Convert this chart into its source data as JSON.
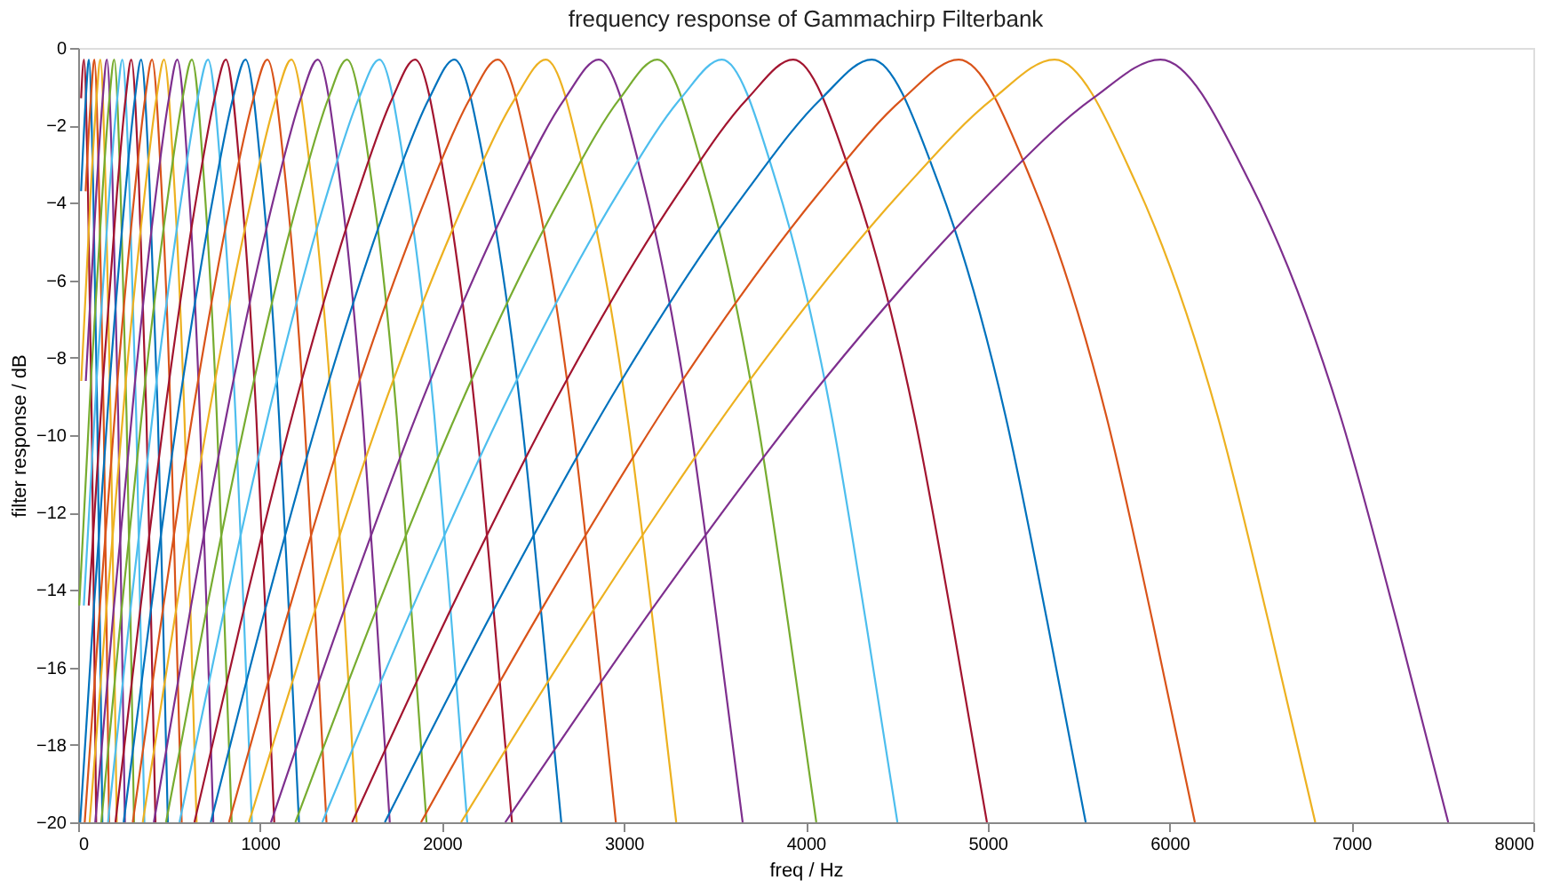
{
  "chart_data": {
    "type": "line",
    "title": "frequency response of Gammachirp Filterbank",
    "xlabel": "freq / Hz",
    "ylabel": "filter response  / dB",
    "xlim": [
      0,
      8000
    ],
    "ylim": [
      -20,
      0
    ],
    "xticks": [
      0,
      1000,
      2000,
      3000,
      4000,
      5000,
      6000,
      7000,
      8000
    ],
    "yticks": [
      -20,
      -18,
      -16,
      -14,
      -12,
      -10,
      -8,
      -6,
      -4,
      -2,
      0
    ],
    "grid": false,
    "legend": false,
    "series": [
      {
        "color": "#a2142f",
        "x": [
          16,
          32,
          53,
          74,
          87,
          99
        ],
        "values": [
          -1.3,
          -0.3,
          -3.5,
          -9.5,
          -14.8,
          -20
        ]
      },
      {
        "color": "#0072bd",
        "x": [
          16,
          42,
          59,
          82,
          105,
          119,
          133
        ],
        "values": [
          -3.7,
          -1.3,
          -0.3,
          -3.5,
          -9.5,
          -14.8,
          -20
        ]
      },
      {
        "color": "#d95319",
        "x": [
          41,
          70,
          89,
          114,
          140,
          156,
          170
        ],
        "values": [
          -3.7,
          -1.3,
          -0.3,
          -3.5,
          -9.5,
          -14.8,
          -20
        ]
      },
      {
        "color": "#edb120",
        "x": [
          17,
          69,
          101,
          122,
          150,
          178,
          196,
          212
        ],
        "values": [
          -8.6,
          -3.7,
          -1.3,
          -0.3,
          -3.5,
          -9.5,
          -14.8,
          -20
        ]
      },
      {
        "color": "#7e2f8e",
        "x": [
          42,
          100,
          135,
          158,
          189,
          220,
          239,
          257
        ],
        "values": [
          -8.6,
          -3.7,
          -1.3,
          -0.3,
          -3.5,
          -9.5,
          -14.8,
          -20
        ]
      },
      {
        "color": "#77ac30",
        "x": [
          6,
          70,
          134,
          172,
          198,
          232,
          266,
          288,
          307
        ],
        "values": [
          -14.4,
          -8.6,
          -3.7,
          -1.3,
          -0.3,
          -3.5,
          -9.5,
          -14.8,
          -20
        ]
      },
      {
        "color": "#4dbeee",
        "x": [
          31,
          101,
          172,
          215,
          243,
          281,
          319,
          342,
          364
        ],
        "values": [
          -14.4,
          -8.6,
          -3.7,
          -1.3,
          -0.3,
          -3.5,
          -9.5,
          -14.8,
          -20
        ]
      },
      {
        "color": "#a2142f",
        "x": [
          58,
          136,
          214,
          261,
          292,
          334,
          375,
          401,
          425
        ],
        "values": [
          -14.4,
          -8.6,
          -3.7,
          -1.3,
          -0.3,
          -3.5,
          -9.5,
          -14.8,
          -20
        ]
      },
      {
        "color": "#0072bd",
        "x": [
          11,
          87,
          174,
          260,
          312,
          346,
          392,
          438,
          467,
          493
        ],
        "values": [
          -20,
          -14.4,
          -8.6,
          -3.7,
          -1.3,
          -0.3,
          -3.5,
          -9.5,
          -14.8,
          -20
        ]
      },
      {
        "color": "#d95319",
        "x": [
          36,
          120,
          216,
          311,
          368,
          406,
          457,
          508,
          539,
          569
        ],
        "values": [
          -20,
          -14.4,
          -8.6,
          -3.7,
          -1.3,
          -0.3,
          -3.5,
          -9.5,
          -14.8,
          -20
        ]
      },
      {
        "color": "#edb120",
        "x": [
          63,
          157,
          262,
          367,
          430,
          472,
          528,
          584,
          619,
          651
        ],
        "values": [
          -20,
          -14.4,
          -8.6,
          -3.7,
          -1.3,
          -0.3,
          -3.5,
          -9.5,
          -14.8,
          -20
        ]
      },
      {
        "color": "#7e2f8e",
        "x": [
          94,
          197,
          313,
          429,
          499,
          545,
          607,
          669,
          708,
          743
        ],
        "values": [
          -20,
          -14.4,
          -8.6,
          -3.7,
          -1.3,
          -0.3,
          -3.5,
          -9.5,
          -14.8,
          -20
        ]
      },
      {
        "color": "#77ac30",
        "x": [
          127,
          241,
          369,
          497,
          574,
          625,
          693,
          762,
          804,
          844
        ],
        "values": [
          -20,
          -14.4,
          -8.6,
          -3.7,
          -1.3,
          -0.3,
          -3.5,
          -9.5,
          -14.8,
          -20
        ]
      },
      {
        "color": "#4dbeee",
        "x": [
          164,
          290,
          431,
          573,
          657,
          714,
          789,
          865,
          912,
          955
        ],
        "values": [
          -20,
          -14.4,
          -8.6,
          -3.7,
          -1.3,
          -0.3,
          -3.5,
          -9.5,
          -14.8,
          -20
        ]
      },
      {
        "color": "#a2142f",
        "x": [
          205,
          344,
          500,
          656,
          750,
          812,
          895,
          979,
          1031,
          1078
        ],
        "values": [
          -20,
          -14.4,
          -8.6,
          -3.7,
          -1.3,
          -0.3,
          -3.5,
          -9.5,
          -14.8,
          -20
        ]
      },
      {
        "color": "#0072bd",
        "x": [
          250,
          403,
          575,
          748,
          851,
          920,
          1012,
          1104,
          1161,
          1214
        ],
        "values": [
          -20,
          -14.4,
          -8.6,
          -3.7,
          -1.3,
          -0.3,
          -3.5,
          -9.5,
          -14.8,
          -20
        ]
      },
      {
        "color": "#d95319",
        "x": [
          300,
          469,
          659,
          850,
          964,
          1040,
          1142,
          1243,
          1306,
          1365
        ],
        "values": [
          -20,
          -14.4,
          -8.6,
          -3.7,
          -1.3,
          -0.3,
          -3.5,
          -9.5,
          -14.8,
          -20
        ]
      },
      {
        "color": "#edb120",
        "x": [
          355,
          542,
          752,
          962,
          1088,
          1172,
          1284,
          1396,
          1466,
          1531
        ],
        "values": [
          -20,
          -14.4,
          -8.6,
          -3.7,
          -1.3,
          -0.3,
          -3.5,
          -9.5,
          -14.8,
          -20
        ]
      },
      {
        "color": "#7e2f8e",
        "x": [
          416,
          621,
          853,
          1085,
          1224,
          1317,
          1441,
          1564,
          1642,
          1713
        ],
        "values": [
          -20,
          -14.4,
          -8.6,
          -3.7,
          -1.3,
          -0.3,
          -3.5,
          -9.5,
          -14.8,
          -20
        ]
      },
      {
        "color": "#77ac30",
        "x": [
          483,
          710,
          966,
          1222,
          1376,
          1478,
          1615,
          1751,
          1836,
          1915
        ],
        "values": [
          -20,
          -14.4,
          -8.6,
          -3.7,
          -1.3,
          -0.3,
          -3.5,
          -9.5,
          -14.8,
          -20
        ]
      },
      {
        "color": "#4dbeee",
        "x": [
          557,
          808,
          1091,
          1373,
          1543,
          1656,
          1807,
          1958,
          2052,
          2139
        ],
        "values": [
          -20,
          -14.4,
          -8.6,
          -3.7,
          -1.3,
          -0.3,
          -3.5,
          -9.5,
          -14.8,
          -20
        ]
      },
      {
        "color": "#a2142f",
        "x": [
          639,
          916,
          1228,
          1540,
          1727,
          1852,
          2018,
          2185,
          2289,
          2385
        ],
        "values": [
          -20,
          -14.4,
          -8.6,
          -3.7,
          -1.3,
          -0.3,
          -3.5,
          -9.5,
          -14.8,
          -20
        ]
      },
      {
        "color": "#0072bd",
        "x": [
          729,
          1034,
          1379,
          1723,
          1930,
          2068,
          2252,
          2436,
          2550,
          2656
        ],
        "values": [
          -20,
          -14.4,
          -8.6,
          -3.7,
          -1.3,
          -0.3,
          -3.5,
          -9.5,
          -14.8,
          -20
        ]
      },
      {
        "color": "#d95319",
        "x": [
          829,
          1166,
          1546,
          1927,
          2155,
          2307,
          2510,
          2713,
          2840,
          2956
        ],
        "values": [
          -20,
          -14.4,
          -8.6,
          -3.7,
          -1.3,
          -0.3,
          -3.5,
          -9.5,
          -14.8,
          -20
        ]
      },
      {
        "color": "#edb120",
        "x": [
          939,
          1311,
          1731,
          2151,
          2403,
          2571,
          2795,
          3019,
          3159,
          3288
        ],
        "values": [
          -20,
          -14.4,
          -8.6,
          -3.7,
          -1.3,
          -0.3,
          -3.5,
          -9.5,
          -14.8,
          -20
        ]
      },
      {
        "color": "#7e2f8e",
        "x": [
          1060,
          1471,
          1935,
          2398,
          2677,
          2862,
          3109,
          3357,
          3511,
          3653
        ],
        "values": [
          -20,
          -14.4,
          -8.6,
          -3.7,
          -1.3,
          -0.3,
          -3.5,
          -9.5,
          -14.8,
          -20
        ]
      },
      {
        "color": "#77ac30",
        "x": [
          1194,
          1648,
          2160,
          2672,
          2979,
          3184,
          3457,
          3730,
          3901,
          4058
        ],
        "values": [
          -20,
          -14.4,
          -8.6,
          -3.7,
          -1.3,
          -0.3,
          -3.5,
          -9.5,
          -14.8,
          -20
        ]
      },
      {
        "color": "#4dbeee",
        "x": [
          1342,
          1843,
          2409,
          2974,
          3313,
          3539,
          3840,
          4142,
          4330,
          4504
        ],
        "values": [
          -20,
          -14.4,
          -8.6,
          -3.7,
          -1.3,
          -0.3,
          -3.5,
          -9.5,
          -14.8,
          -20
        ]
      },
      {
        "color": "#a2142f",
        "x": [
          1506,
          2059,
          2683,
          3307,
          3681,
          3931,
          4264,
          4597,
          4805,
          4996
        ],
        "values": [
          -20,
          -14.4,
          -8.6,
          -3.7,
          -1.3,
          -0.3,
          -3.5,
          -9.5,
          -14.8,
          -20
        ]
      },
      {
        "color": "#0072bd",
        "x": [
          1686,
          2297,
          2985,
          3674,
          4087,
          4363,
          4730,
          5098,
          5327,
          5539
        ],
        "values": [
          -20,
          -14.4,
          -8.6,
          -3.7,
          -1.3,
          -0.3,
          -3.5,
          -9.5,
          -14.8,
          -20
        ]
      },
      {
        "color": "#d95319",
        "x": [
          1885,
          2560,
          3320,
          4081,
          4537,
          4841,
          5247,
          5652,
          5906,
          6139
        ],
        "values": [
          -20,
          -14.4,
          -8.6,
          -3.7,
          -1.3,
          -0.3,
          -3.5,
          -9.5,
          -14.8,
          -20
        ]
      },
      {
        "color": "#edb120",
        "x": [
          2105,
          2849,
          3689,
          4528,
          5032,
          5368,
          5816,
          6264,
          6543,
          6801
        ],
        "values": [
          -20,
          -14.4,
          -8.6,
          -3.7,
          -1.3,
          -0.3,
          -3.5,
          -9.5,
          -14.8,
          -20
        ]
      },
      {
        "color": "#7e2f8e",
        "x": [
          2348,
          3169,
          4096,
          5023,
          5579,
          5950,
          6444,
          6939,
          7248,
          7532
        ],
        "values": [
          -20,
          -14.4,
          -8.6,
          -3.7,
          -1.3,
          -0.3,
          -3.5,
          -9.5,
          -14.8,
          -20
        ]
      }
    ]
  }
}
